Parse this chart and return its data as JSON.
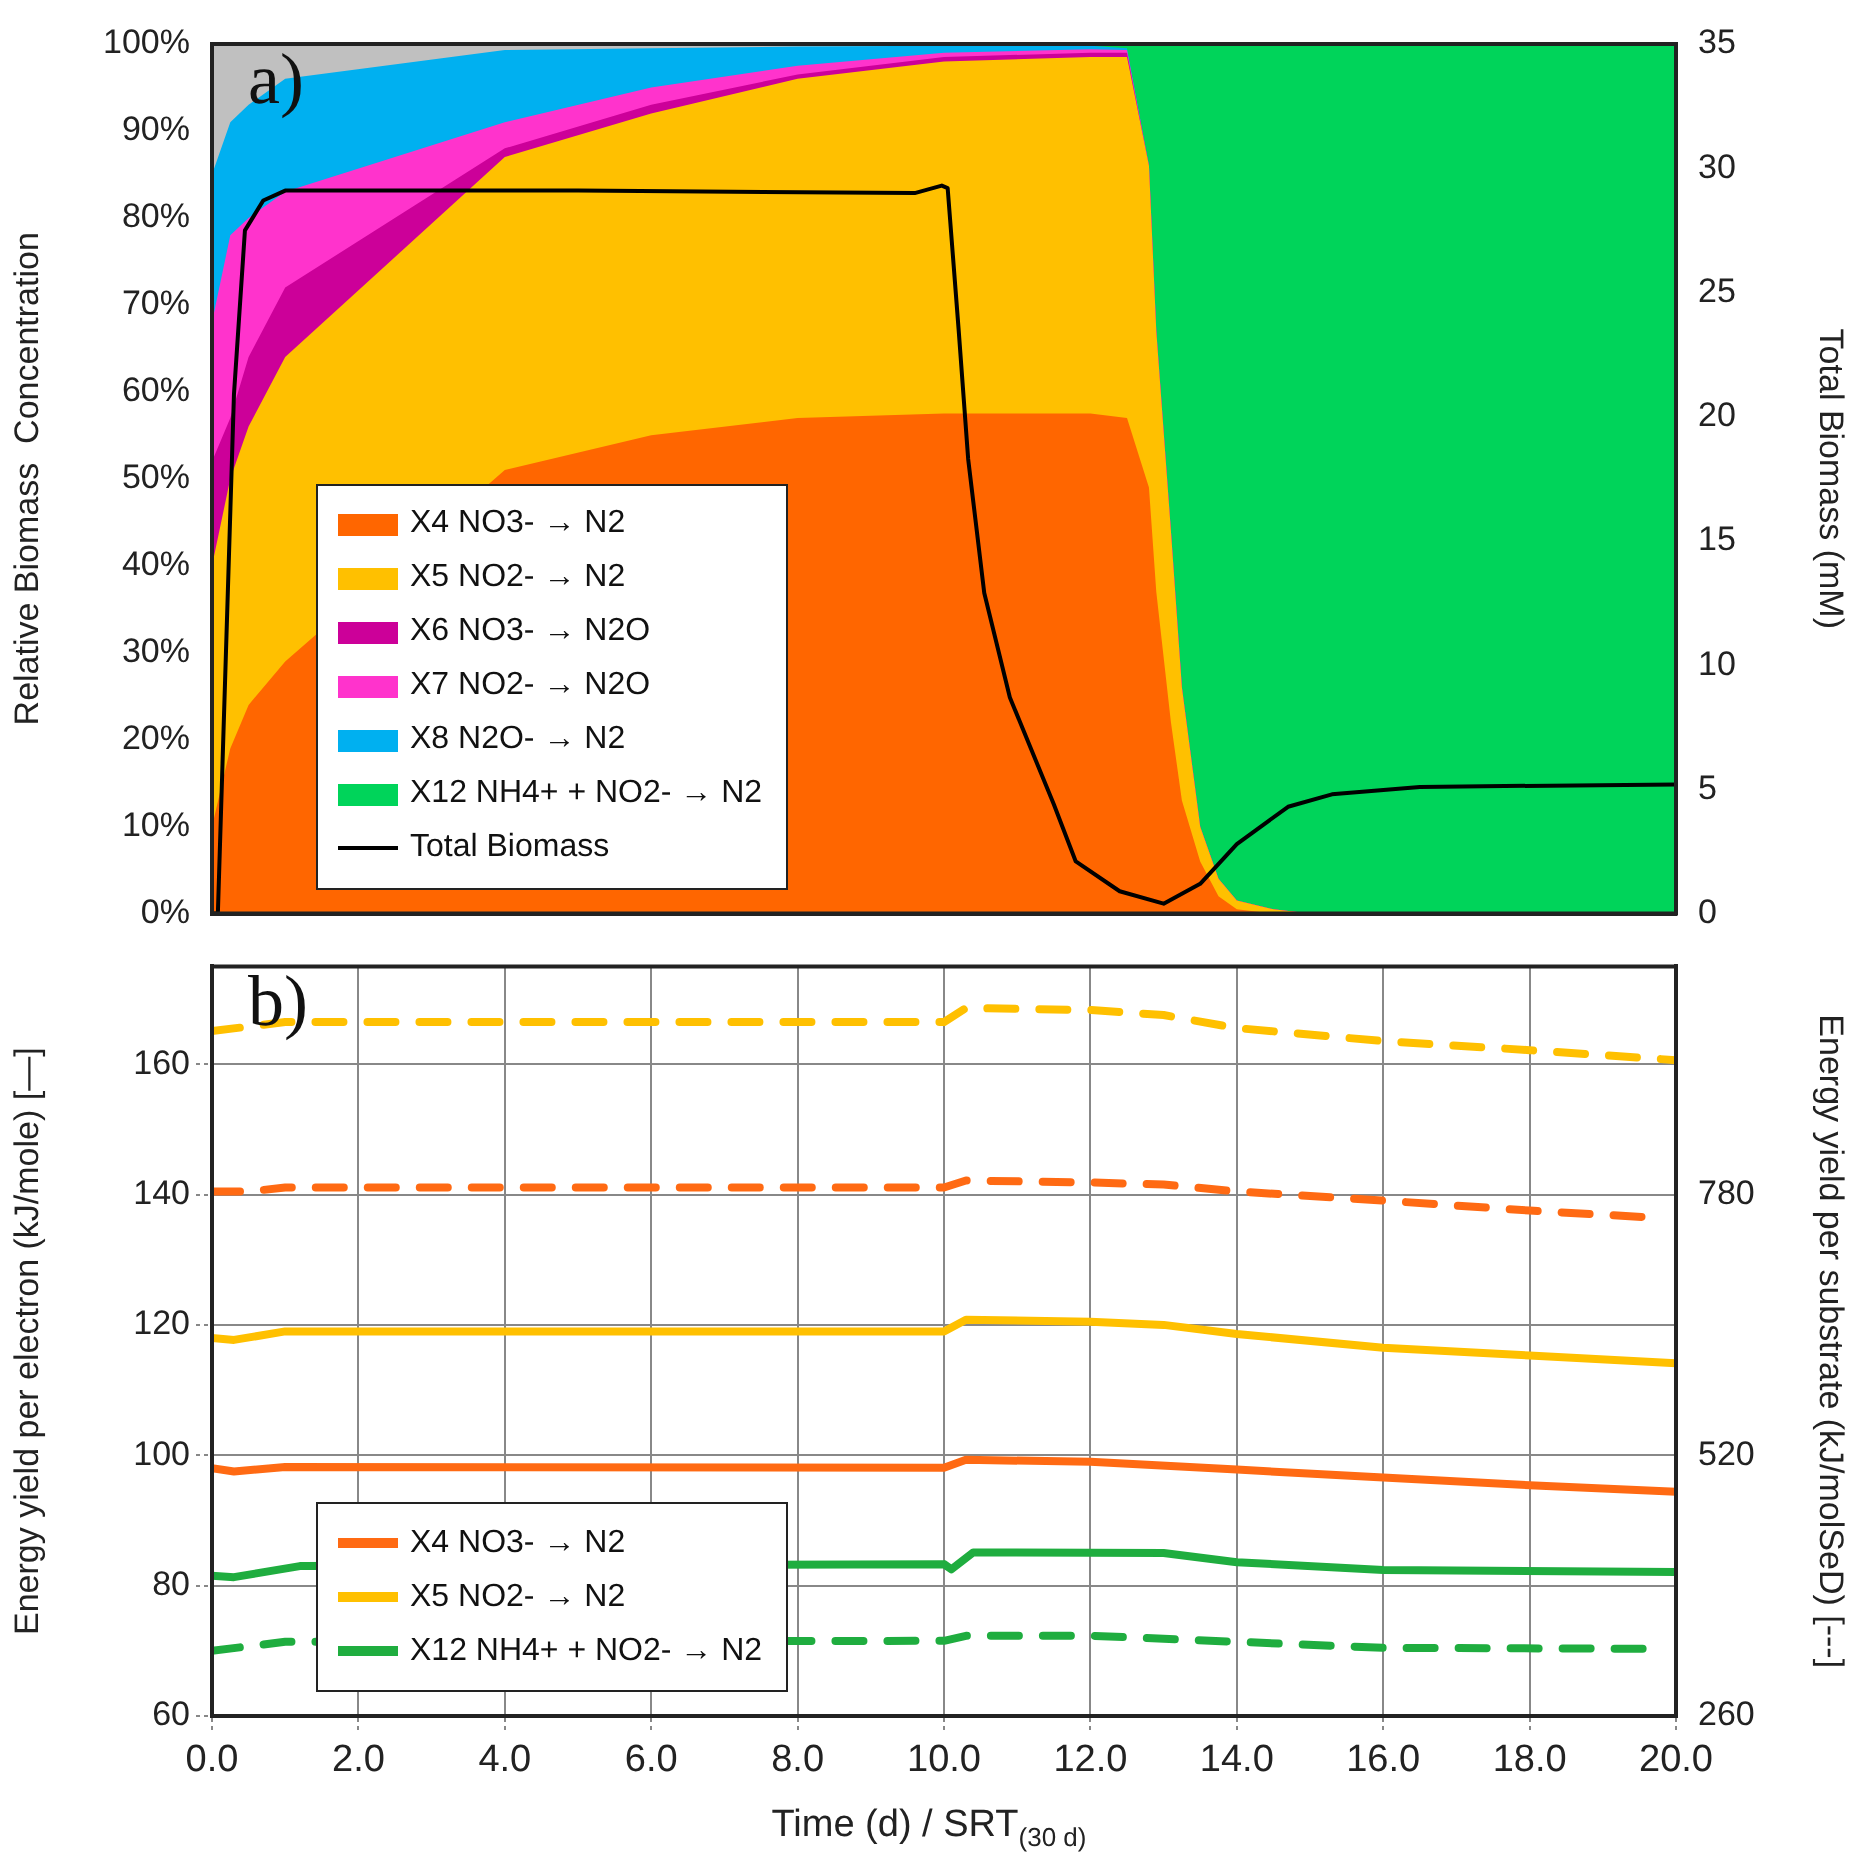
{
  "chart_data": [
    {
      "type": "area",
      "stacked": true,
      "ylabel": "Relative Biomass  Concentration",
      "y2label": "Total Biomass (mM)",
      "annotations": [
        "a)"
      ],
      "xlim": [
        0,
        20
      ],
      "ylim": [
        0,
        100
      ],
      "yticks": [
        {
          "value": 0,
          "label": "0%"
        },
        {
          "value": 10,
          "label": "10%"
        },
        {
          "value": 20,
          "label": "20%"
        },
        {
          "value": 30,
          "label": "30%"
        },
        {
          "value": 40,
          "label": "40%"
        },
        {
          "value": 50,
          "label": "50%"
        },
        {
          "value": 60,
          "label": "60%"
        },
        {
          "value": 70,
          "label": "70%"
        },
        {
          "value": 80,
          "label": "80%"
        },
        {
          "value": 90,
          "label": "90%"
        },
        {
          "value": 100,
          "label": "100%"
        }
      ],
      "y2lim": [
        0,
        35
      ],
      "y2ticks": [
        0,
        5,
        10,
        15,
        20,
        25,
        30,
        35
      ],
      "tick_labels": "y",
      "legend": "bottom left",
      "marker": "none",
      "x": [
        0,
        0.25,
        0.5,
        1,
        4,
        6,
        8,
        10,
        12,
        12.5,
        12.8,
        12.9,
        13.1,
        13.25,
        13.5,
        13.75,
        14,
        14.5,
        15,
        20
      ],
      "series": [
        {
          "name": "X4 NO3-  → N2",
          "color": "#ff6600",
          "values": [
            10,
            19,
            24,
            29,
            51,
            55,
            57,
            57.5,
            57.5,
            57,
            49,
            37,
            22,
            13,
            6,
            2,
            0.5,
            0,
            0,
            0
          ]
        },
        {
          "name": "X5 NO2-  → N2",
          "color": "#ffc000",
          "values": [
            30,
            31,
            32,
            35,
            36,
            37,
            39,
            40.5,
            41,
            41.5,
            37,
            30,
            22,
            13,
            4,
            2,
            1,
            0.5,
            0,
            0
          ]
        },
        {
          "name": "X6 NO3- → N2O",
          "color": "#cc0099",
          "values": [
            12,
            7,
            8,
            8,
            1,
            1,
            0.5,
            0.5,
            0.5,
            0.5,
            0,
            0,
            0,
            0,
            0,
            0,
            0,
            0,
            0,
            0
          ]
        },
        {
          "name": "X7 NO2- → N2O",
          "color": "#ff33cc",
          "values": [
            16,
            21,
            16,
            11,
            3,
            2,
            1,
            0.5,
            0.4,
            0.3,
            0,
            0,
            0,
            0,
            0,
            0,
            0,
            0,
            0,
            0
          ]
        },
        {
          "name": "X8 N2O- → N2",
          "color": "#00b0f0",
          "values": [
            17,
            13,
            13,
            13,
            8.3,
            4.5,
            2.2,
            0.8,
            0.4,
            0.2,
            0,
            0,
            0,
            0,
            0,
            0,
            0,
            0,
            0,
            0
          ]
        },
        {
          "color": "#c0c0c0",
          "values": [
            15,
            9,
            7,
            4,
            0.7,
            0.5,
            0.3,
            0.2,
            0,
            null,
            null,
            null,
            null,
            null,
            null,
            null,
            null,
            null,
            null,
            null
          ]
        },
        {
          "name": "X12 NH4+ + NO2- → N2",
          "color": "#00d45a",
          "values": [
            null,
            null,
            null,
            null,
            null,
            null,
            null,
            null,
            0.2,
            0.5,
            14,
            33,
            56,
            74,
            90,
            96,
            98.5,
            99.5,
            100,
            100
          ]
        },
        {
          "name": "Total Biomass",
          "type": "line",
          "axis": "y2",
          "color": "#000000",
          "x": [
            0,
            0.08,
            0.3,
            0.45,
            0.7,
            1,
            5,
            9.6,
            9.97,
            10.05,
            10.2,
            10.33,
            10.55,
            10.9,
            11.5,
            11.8,
            12.4,
            13,
            13.5,
            14,
            14.7,
            15.3,
            16.5,
            20
          ],
          "values": [
            0,
            0,
            20.9,
            27.5,
            28.7,
            29.1,
            29.1,
            29.0,
            29.3,
            29.2,
            23.5,
            18.3,
            12.9,
            8.7,
            4.4,
            2.1,
            0.9,
            0.4,
            1.2,
            2.8,
            4.3,
            4.8,
            5.1,
            5.2
          ]
        }
      ]
    },
    {
      "type": "line",
      "xlabel": "Time (d) / SRT$_{(30 d)}$",
      "ylabel": "Energy yield per electron (kJ/mole) [—]",
      "y2label": "Energy yield per substrate (kJ/molSeD) [---]",
      "annotations": [
        "b)"
      ],
      "xlim": [
        0,
        20
      ],
      "xticks": [
        {
          "value": 0,
          "label": "0.0"
        },
        {
          "value": 2,
          "label": "2.0"
        },
        {
          "value": 4,
          "label": "4.0"
        },
        {
          "value": 6,
          "label": "6.0"
        },
        {
          "value": 8,
          "label": "8.0"
        },
        {
          "value": 10,
          "label": "10.0"
        },
        {
          "value": 12,
          "label": "12.0"
        },
        {
          "value": 14,
          "label": "14.0"
        },
        {
          "value": 16,
          "label": "16.0"
        },
        {
          "value": 18,
          "label": "18.0"
        },
        {
          "value": 20,
          "label": "20.0"
        }
      ],
      "ylim": [
        60,
        175
      ],
      "yticks": [
        60,
        80,
        100,
        120,
        140,
        160
      ],
      "y2lim": [
        260,
        1007.5
      ],
      "y2ticks": [
        260,
        520,
        780
      ],
      "grid": true,
      "legend": "bottom left",
      "marker": "none",
      "series": [
        {
          "name": "X4 NO3-  → N2",
          "color": "#ff6a13",
          "x": [
            0,
            0.3,
            1,
            10,
            10.3,
            12,
            14,
            16,
            18,
            20
          ],
          "values": [
            98,
            97.5,
            98.2,
            98.1,
            99.3,
            99,
            97.8,
            96.6,
            95.4,
            94.4
          ]
        },
        {
          "name": "X5 NO2-  → N2",
          "color": "#ffc000",
          "x": [
            0,
            0.3,
            1,
            10,
            10.3,
            12,
            13,
            14,
            16,
            18,
            20
          ],
          "values": [
            118,
            117.7,
            119,
            119,
            120.8,
            120.5,
            120,
            118.6,
            116.5,
            115.3,
            114.1
          ]
        },
        {
          "name": "X12 NH4+ + NO2- → N2",
          "color": "#1fad3f",
          "x": [
            0,
            0.3,
            1.2,
            10,
            10.1,
            10.4,
            13,
            14,
            16,
            20
          ],
          "values": [
            81.5,
            81.3,
            83,
            83.3,
            82.5,
            85.1,
            85,
            83.6,
            82.4,
            82.1
          ]
        },
        {
          "color": "#ffc000",
          "axis": "y2",
          "line_style": "dashed",
          "x": [
            0,
            1,
            10,
            10.3,
            12,
            13,
            14,
            16,
            18,
            20
          ],
          "values": [
            943,
            952,
            952,
            966,
            964,
            959,
            946,
            933,
            924,
            914
          ]
        },
        {
          "color": "#ff6a13",
          "axis": "y2",
          "line_style": "dashed",
          "x": [
            0,
            0.5,
            1,
            10,
            10.3,
            12,
            13,
            14,
            16,
            18,
            19.7
          ],
          "values": [
            783,
            783,
            787,
            787,
            794,
            792,
            790,
            783,
            774,
            764,
            757
          ]
        },
        {
          "color": "#1fad3f",
          "axis": "y2",
          "line_style": "dashed",
          "x": [
            0,
            1,
            10,
            10.3,
            12,
            14,
            16,
            19.7
          ],
          "values": [
            325,
            334,
            335,
            340,
            340,
            334,
            328,
            327
          ]
        }
      ]
    }
  ]
}
